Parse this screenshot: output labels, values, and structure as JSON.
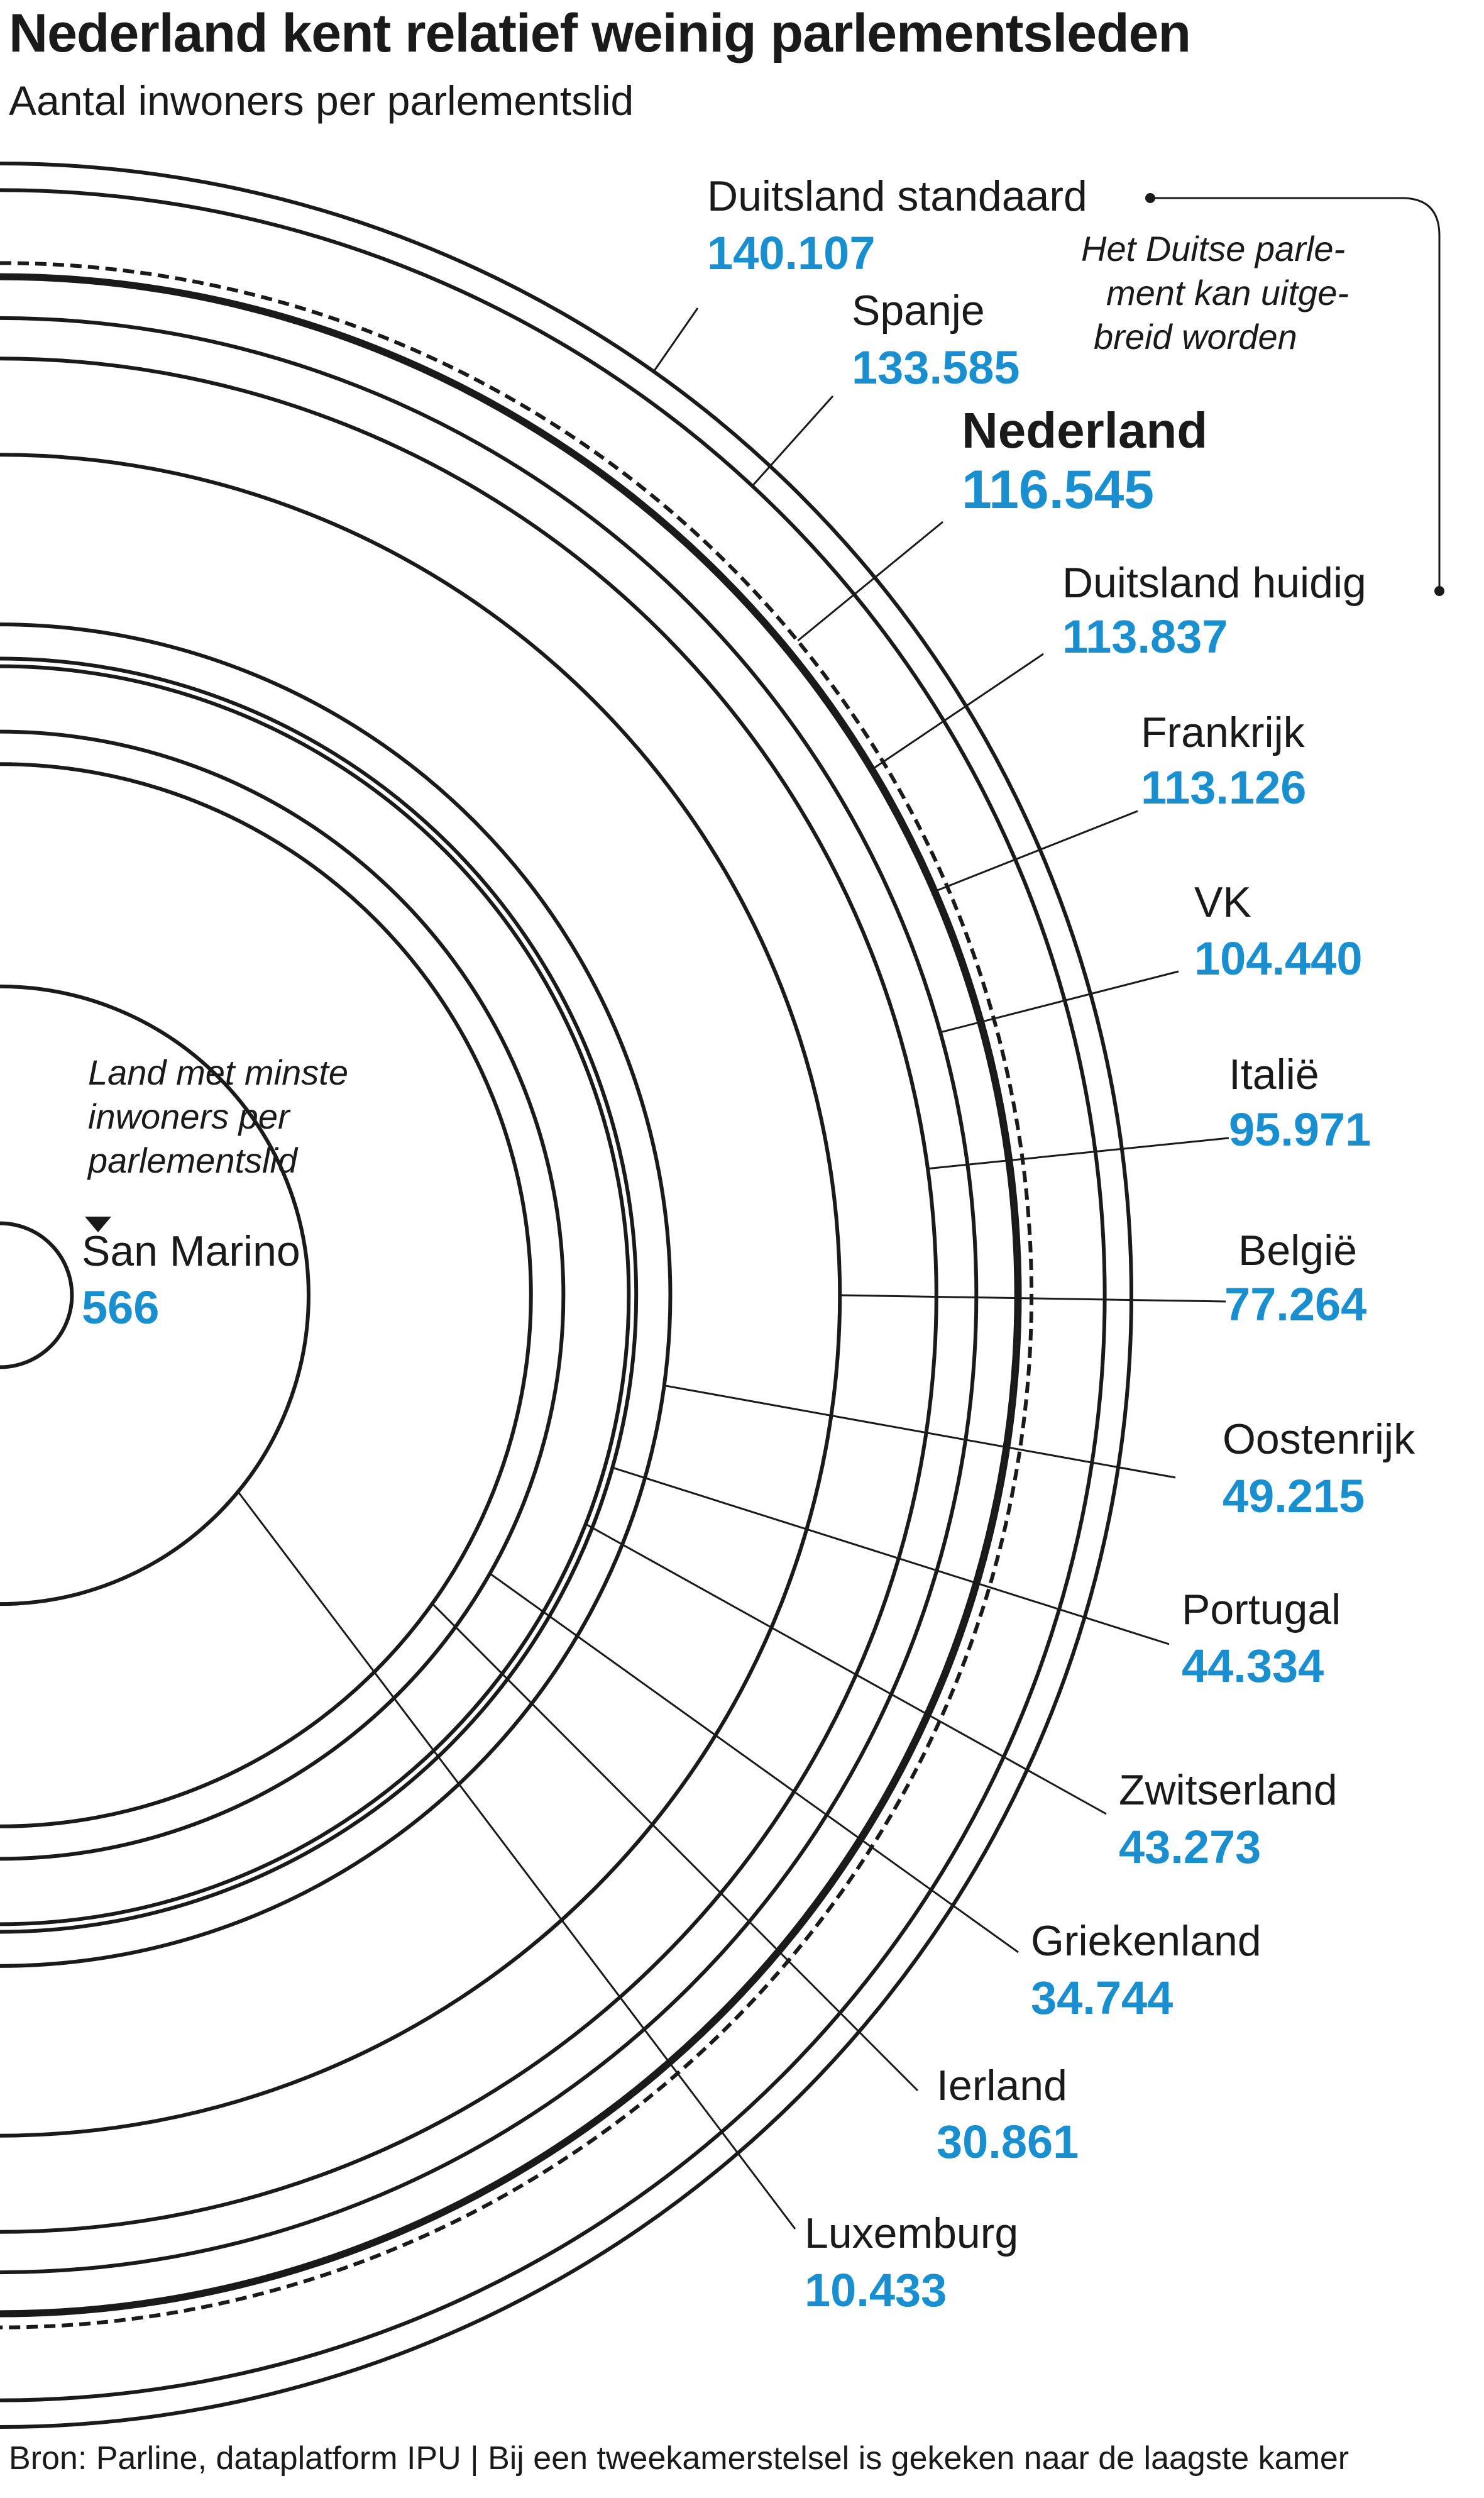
{
  "title": "Nederland kent relatief weinig parlementsleden",
  "subtitle": "Aantal inwoners per parlementslid",
  "source": "Bron: Parline, dataplatform IPU | Bij een tweekamerstelsel is gekeken naar de laagste kamer",
  "chart_data": {
    "type": "radial-arcs",
    "title": "Nederland kent relatief weinig parlementsleden",
    "subtitle": "Aantal inwoners per parlementslid",
    "unit": "inwoners per parlementslid",
    "entries": [
      {
        "country": "Duitsland standaard",
        "label": "140.107",
        "value": 140107
      },
      {
        "country": "Spanje",
        "label": "133.585",
        "value": 133585
      },
      {
        "country": "Nederland",
        "label": "116.545",
        "value": 116545,
        "highlight": true
      },
      {
        "country": "Duitsland huidig",
        "label": "113.837",
        "value": 113837
      },
      {
        "country": "Frankrijk",
        "label": "113.126",
        "value": 113126
      },
      {
        "country": "VK",
        "label": "104.440",
        "value": 104440
      },
      {
        "country": "Italië",
        "label": "95.971",
        "value": 95971
      },
      {
        "country": "België",
        "label": "77.264",
        "value": 77264
      },
      {
        "country": "Oostenrijk",
        "label": "49.215",
        "value": 49215
      },
      {
        "country": "Portugal",
        "label": "44.334",
        "value": 44334
      },
      {
        "country": "Zwitserland",
        "label": "43.273",
        "value": 43273
      },
      {
        "country": "Griekenland",
        "label": "34.744",
        "value": 34744
      },
      {
        "country": "Ierland",
        "label": "30.861",
        "value": 30861
      },
      {
        "country": "Luxemburg",
        "label": "10.433",
        "value": 10433
      },
      {
        "country": "San Marino",
        "label": "566",
        "value": 566
      }
    ],
    "annotations": {
      "germany": [
        "Het Duitse parle-",
        "ment kan uitge-",
        "breid worden"
      ],
      "smallest": [
        "Land met minste",
        "inwoners per",
        "parlementslid"
      ]
    }
  }
}
